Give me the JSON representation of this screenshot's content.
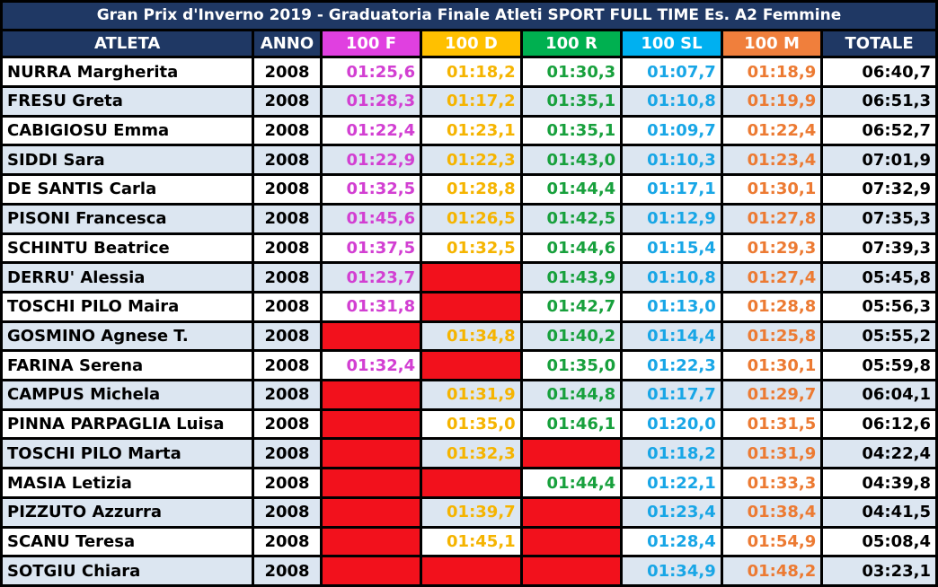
{
  "title": "Gran Prix d'Inverno 2019 - Graduatoria Finale Atleti SPORT FULL TIME Es. A2 Femmine",
  "headers": [
    "ATLETA",
    "ANNO",
    "100 F",
    "100 D",
    "100 R",
    "100 SL",
    "100 M",
    "TOTALE"
  ],
  "rows": [
    [
      "NURRA Margherita",
      2008,
      "01:25,6",
      "01:18,2",
      "01:30,3",
      "01:07,7",
      "01:18,9",
      "06:40,7"
    ],
    [
      "FRESU Greta",
      2008,
      "01:28,3",
      "01:17,2",
      "01:35,1",
      "01:10,8",
      "01:19,9",
      "06:51,3"
    ],
    [
      "CABIGIOSU Emma",
      2008,
      "01:22,4",
      "01:23,1",
      "01:35,1",
      "01:09,7",
      "01:22,4",
      "06:52,7"
    ],
    [
      "SIDDI Sara",
      2008,
      "01:22,9",
      "01:22,3",
      "01:43,0",
      "01:10,3",
      "01:23,4",
      "07:01,9"
    ],
    [
      "DE SANTIS Carla",
      2008,
      "01:32,5",
      "01:28,8",
      "01:44,4",
      "01:17,1",
      "01:30,1",
      "07:32,9"
    ],
    [
      "PISONI Francesca",
      2008,
      "01:45,6",
      "01:26,5",
      "01:42,5",
      "01:12,9",
      "01:27,8",
      "07:35,3"
    ],
    [
      "SCHINTU Beatrice",
      2008,
      "01:37,5",
      "01:32,5",
      "01:44,6",
      "01:15,4",
      "01:29,3",
      "07:39,3"
    ],
    [
      "DERRU' Alessia",
      2008,
      "01:23,7",
      null,
      "01:43,9",
      "01:10,8",
      "01:27,4",
      "05:45,8"
    ],
    [
      "TOSCHI PILO Maira",
      2008,
      "01:31,8",
      null,
      "01:42,7",
      "01:13,0",
      "01:28,8",
      "05:56,3"
    ],
    [
      "GOSMINO Agnese T.",
      2008,
      null,
      "01:34,8",
      "01:40,2",
      "01:14,4",
      "01:25,8",
      "05:55,2"
    ],
    [
      "FARINA Serena",
      2008,
      "01:32,4",
      null,
      "01:35,0",
      "01:22,3",
      "01:30,1",
      "05:59,8"
    ],
    [
      "CAMPUS Michela",
      2008,
      null,
      "01:31,9",
      "01:44,8",
      "01:17,7",
      "01:29,7",
      "06:04,1"
    ],
    [
      "PINNA PARPAGLIA Luisa",
      2008,
      null,
      "01:35,0",
      "01:46,1",
      "01:20,0",
      "01:31,5",
      "06:12,6"
    ],
    [
      "TOSCHI PILO Marta",
      2008,
      null,
      "01:32,3",
      null,
      "01:18,2",
      "01:31,9",
      "04:22,4"
    ],
    [
      "MASIA Letizia",
      2008,
      null,
      null,
      "01:44,4",
      "01:22,1",
      "01:33,3",
      "04:39,8"
    ],
    [
      "PIZZUTO Azzurra",
      2008,
      null,
      "01:39,7",
      null,
      "01:23,4",
      "01:38,4",
      "04:41,5"
    ],
    [
      "SCANU Teresa",
      2008,
      null,
      "01:45,1",
      null,
      "01:28,4",
      "01:54,9",
      "05:08,4"
    ],
    [
      "SOTGIU Chiara",
      2008,
      null,
      null,
      null,
      "01:34,9",
      "01:48,2",
      "03:23,1"
    ]
  ]
}
